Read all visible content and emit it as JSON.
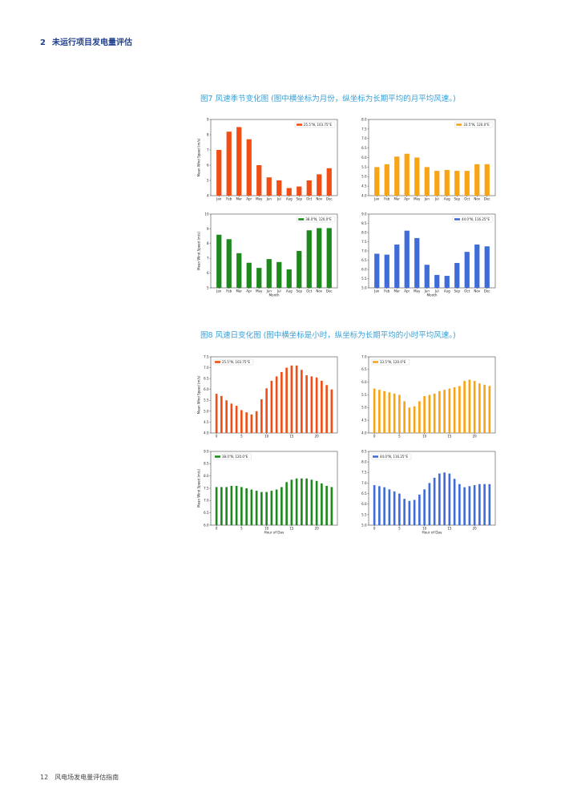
{
  "header": {
    "number": "2",
    "title": "未运行项目发电量评估"
  },
  "footer": {
    "page": "12",
    "text": "风电场发电量评估指南"
  },
  "figure7": {
    "caption": "图7  风速季节变化图 (图中横坐标为月份，纵坐标为长期平均的月平均风速。)"
  },
  "figure8": {
    "caption": "图8  风速日变化图 (图中横坐标是小时，纵坐标为长期平均的小时平均风速。)"
  },
  "chart_data": [
    {
      "id": "m1",
      "type": "bar",
      "color": "#f04e14",
      "legend": "25.5°N, 103.75°E",
      "ylabel": "Mean Wind Speed (m/s)",
      "xlabel": "",
      "categories": [
        "Jan",
        "Feb",
        "Mar",
        "Apr",
        "May",
        "Jun",
        "Jul",
        "Aug",
        "Sep",
        "Oct",
        "Nov",
        "Dec"
      ],
      "values": [
        7.0,
        8.2,
        8.5,
        7.7,
        6.0,
        5.2,
        5.0,
        4.5,
        4.6,
        5.0,
        5.4,
        5.8
      ],
      "ylim": [
        4,
        9
      ],
      "yticks": [
        "4",
        "5",
        "6",
        "7",
        "8",
        "9"
      ],
      "legend_position": "top-right"
    },
    {
      "id": "m2",
      "type": "bar",
      "color": "#f7a417",
      "legend": "33.5°N, 120.0°E",
      "ylabel": "",
      "xlabel": "",
      "categories": [
        "Jan",
        "Feb",
        "Mar",
        "Apr",
        "May",
        "Jun",
        "Jul",
        "Aug",
        "Sep",
        "Oct",
        "Nov",
        "Dec"
      ],
      "values": [
        5.5,
        5.65,
        6.05,
        6.2,
        6.0,
        5.5,
        5.3,
        5.35,
        5.3,
        5.3,
        5.65,
        5.65
      ],
      "ylim": [
        4,
        8
      ],
      "yticks": [
        "4.0",
        "4.5",
        "5.0",
        "5.5",
        "6.0",
        "6.5",
        "7.0",
        "7.5",
        "8.0"
      ],
      "legend_position": "top-right"
    },
    {
      "id": "m3",
      "type": "bar",
      "color": "#1e8a1e",
      "legend": "38.0°N, 120.0°E",
      "ylabel": "Mean Wind Speed (m/s)",
      "xlabel": "Month",
      "categories": [
        "Jan",
        "Feb",
        "Mar",
        "Apr",
        "May",
        "Jun",
        "Jul",
        "Aug",
        "Sep",
        "Oct",
        "Nov",
        "Dec"
      ],
      "values": [
        8.6,
        8.3,
        7.35,
        6.7,
        6.35,
        6.95,
        6.75,
        6.25,
        7.5,
        8.9,
        9.05,
        9.05
      ],
      "ylim": [
        5,
        10
      ],
      "yticks": [
        "5",
        "6",
        "7",
        "8",
        "9",
        "10"
      ],
      "legend_position": "top-right"
    },
    {
      "id": "m4",
      "type": "bar",
      "color": "#3f6cd9",
      "legend": "44.0°N, 116.25°E",
      "ylabel": "",
      "xlabel": "Month",
      "categories": [
        "Jan",
        "Feb",
        "Mar",
        "Apr",
        "May",
        "Jun",
        "Jul",
        "Aug",
        "Sep",
        "Oct",
        "Nov",
        "Dec"
      ],
      "values": [
        6.85,
        6.8,
        7.35,
        8.1,
        7.7,
        6.25,
        5.7,
        5.65,
        6.35,
        6.95,
        7.35,
        7.25
      ],
      "ylim": [
        5,
        9
      ],
      "yticks": [
        "5.0",
        "5.5",
        "6.0",
        "6.5",
        "7.0",
        "7.5",
        "8.0",
        "8.5",
        "9.0"
      ],
      "legend_position": "top-right"
    },
    {
      "id": "h1",
      "type": "bar",
      "color": "#f04e14",
      "legend": "25.5°N, 103.75°E",
      "ylabel": "Mean Wind Speed (m/s)",
      "xlabel": "",
      "x": [
        0,
        1,
        2,
        3,
        4,
        5,
        6,
        7,
        8,
        9,
        10,
        11,
        12,
        13,
        14,
        15,
        16,
        17,
        18,
        19,
        20,
        21,
        22,
        23
      ],
      "values": [
        5.8,
        5.7,
        5.5,
        5.35,
        5.25,
        5.05,
        4.95,
        4.85,
        5.0,
        5.55,
        6.05,
        6.4,
        6.6,
        6.8,
        7.0,
        7.1,
        7.1,
        6.9,
        6.65,
        6.6,
        6.55,
        6.4,
        6.2,
        6.0
      ],
      "ylim": [
        4,
        7.5
      ],
      "yticks": [
        "4.0",
        "4.5",
        "5.0",
        "5.5",
        "6.0",
        "6.5",
        "7.0",
        "7.5"
      ],
      "xticks": [
        "0",
        "5",
        "10",
        "15",
        "20"
      ],
      "legend_position": "top-left"
    },
    {
      "id": "h2",
      "type": "bar",
      "color": "#f7a417",
      "legend": "33.5°N, 120.0°E",
      "ylabel": "",
      "xlabel": "",
      "x": [
        0,
        1,
        2,
        3,
        4,
        5,
        6,
        7,
        8,
        9,
        10,
        11,
        12,
        13,
        14,
        15,
        16,
        17,
        18,
        19,
        20,
        21,
        22,
        23
      ],
      "values": [
        5.75,
        5.7,
        5.65,
        5.6,
        5.55,
        5.5,
        5.25,
        5.0,
        5.05,
        5.25,
        5.45,
        5.5,
        5.55,
        5.65,
        5.7,
        5.75,
        5.8,
        5.85,
        6.05,
        6.1,
        6.05,
        5.95,
        5.9,
        5.85
      ],
      "ylim": [
        4,
        7
      ],
      "yticks": [
        "4.0",
        "4.5",
        "5.0",
        "5.5",
        "6.0",
        "6.5",
        "7.0"
      ],
      "xticks": [
        "0",
        "5",
        "10",
        "15",
        "20"
      ],
      "legend_position": "top-left"
    },
    {
      "id": "h3",
      "type": "bar",
      "color": "#1e8a1e",
      "legend": "38.0°N, 120.0°E",
      "ylabel": "Mean Wind Speed (m/s)",
      "xlabel": "Hour of Day",
      "x": [
        0,
        1,
        2,
        3,
        4,
        5,
        6,
        7,
        8,
        9,
        10,
        11,
        12,
        13,
        14,
        15,
        16,
        17,
        18,
        19,
        20,
        21,
        22,
        23
      ],
      "values": [
        7.55,
        7.55,
        7.55,
        7.6,
        7.6,
        7.55,
        7.5,
        7.45,
        7.4,
        7.35,
        7.35,
        7.4,
        7.45,
        7.55,
        7.75,
        7.85,
        7.9,
        7.9,
        7.9,
        7.85,
        7.8,
        7.7,
        7.6,
        7.55
      ],
      "ylim": [
        6,
        9
      ],
      "yticks": [
        "6.0",
        "6.5",
        "7.0",
        "7.5",
        "8.0",
        "8.5",
        "9.0"
      ],
      "xticks": [
        "0",
        "5",
        "10",
        "15",
        "20"
      ],
      "legend_position": "top-left"
    },
    {
      "id": "h4",
      "type": "bar",
      "color": "#3f6cd9",
      "legend": "44.0°N, 116.25°E",
      "ylabel": "",
      "xlabel": "Hour of Day",
      "x": [
        0,
        1,
        2,
        3,
        4,
        5,
        6,
        7,
        8,
        9,
        10,
        11,
        12,
        13,
        14,
        15,
        16,
        17,
        18,
        19,
        20,
        21,
        22,
        23
      ],
      "values": [
        6.9,
        6.85,
        6.8,
        6.7,
        6.6,
        6.5,
        6.25,
        6.15,
        6.2,
        6.45,
        6.7,
        7.0,
        7.25,
        7.45,
        7.5,
        7.45,
        7.2,
        6.95,
        6.8,
        6.85,
        6.9,
        6.95,
        6.95,
        6.95
      ],
      "ylim": [
        5,
        8.5
      ],
      "yticks": [
        "5.0",
        "5.5",
        "6.0",
        "6.5",
        "7.0",
        "7.5",
        "8.0",
        "8.5"
      ],
      "xticks": [
        "0",
        "5",
        "10",
        "15",
        "20"
      ],
      "legend_position": "top-left"
    }
  ]
}
